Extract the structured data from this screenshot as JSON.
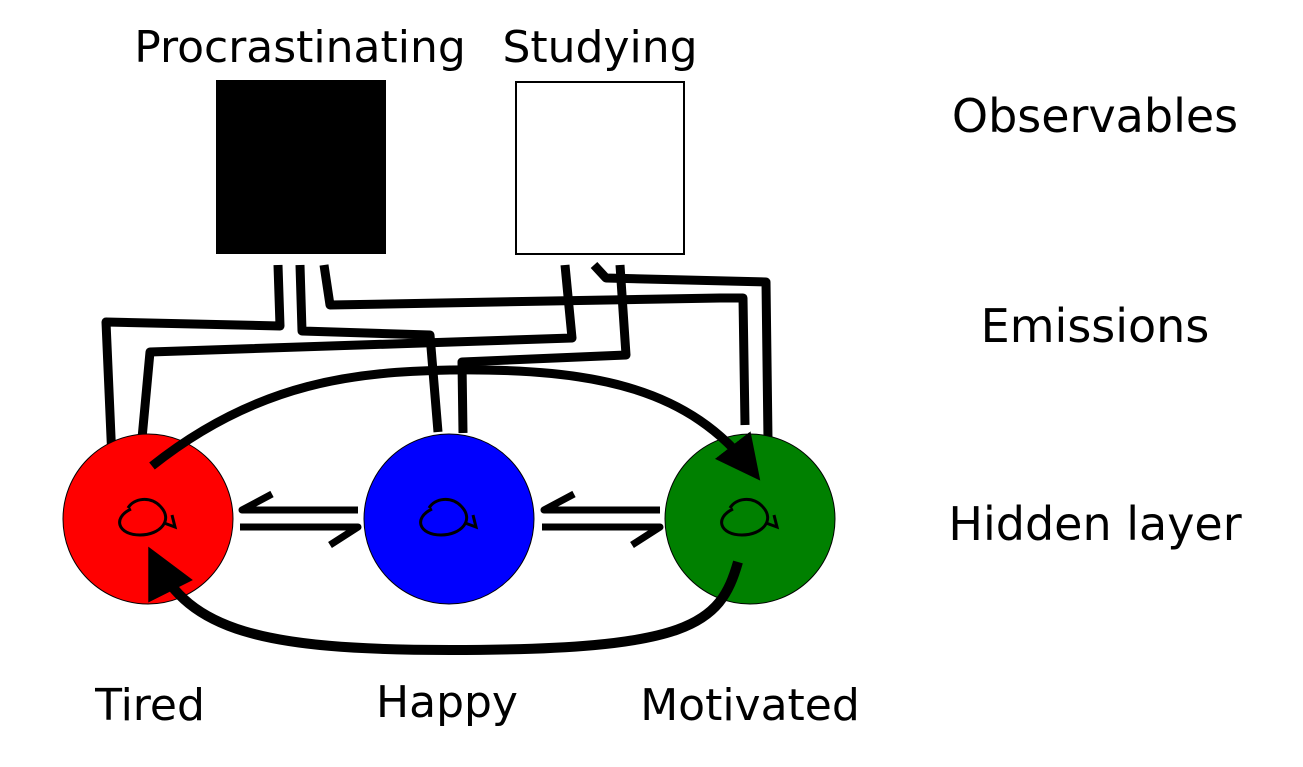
{
  "observables": [
    {
      "id": "procrastinating",
      "label": "Procrastinating",
      "fill": "#000000"
    },
    {
      "id": "studying",
      "label": "Studying",
      "fill": "#ffffff"
    }
  ],
  "hidden_states": [
    {
      "id": "tired",
      "label": "Tired",
      "color": "#ff0000"
    },
    {
      "id": "happy",
      "label": "Happy",
      "color": "#0000ff"
    },
    {
      "id": "motivated",
      "label": "Motivated",
      "color": "#008000"
    }
  ],
  "layer_labels": {
    "observables": "Observables",
    "emissions": "Emissions",
    "hidden": "Hidden layer"
  }
}
